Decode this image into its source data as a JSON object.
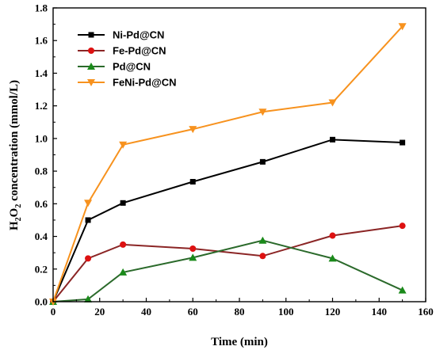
{
  "chart_data": {
    "type": "line",
    "xlabel": "Time (min)",
    "ylabel_main": "H",
    "ylabel_sub1": "2",
    "ylabel_mid": "O",
    "ylabel_sub2": "2",
    "ylabel_rest": " concentration (mmol/L)",
    "xlim": [
      0,
      160
    ],
    "ylim": [
      0.0,
      1.8
    ],
    "x_ticks": [
      "0",
      "20",
      "40",
      "60",
      "80",
      "100",
      "120",
      "140",
      "160"
    ],
    "y_ticks": [
      "0.0",
      "0.2",
      "0.4",
      "0.6",
      "0.8",
      "1.0",
      "1.2",
      "1.4",
      "1.6",
      "1.8"
    ],
    "grid": false,
    "legend_position": "top-left",
    "x": [
      0,
      15,
      30,
      60,
      90,
      120,
      150
    ],
    "series": [
      {
        "name": "Ni-Pd@CN",
        "color": "#000000",
        "marker": "square",
        "values": [
          0.0,
          0.5,
          0.605,
          0.735,
          0.857,
          0.993,
          0.975
        ]
      },
      {
        "name": "Fe-Pd@CN",
        "color": "#8b2525",
        "marker_color": "#dd1111",
        "marker": "circle",
        "values": [
          0.0,
          0.265,
          0.35,
          0.325,
          0.28,
          0.405,
          0.465
        ]
      },
      {
        "name": "Pd@CN",
        "color": "#2b6a2b",
        "marker_color": "#1a8a1a",
        "marker": "triangle-up",
        "values": [
          0.0,
          0.015,
          0.18,
          0.27,
          0.375,
          0.265,
          0.07
        ]
      },
      {
        "name": "FeNi-Pd@CN",
        "color": "#f7921e",
        "marker": "triangle-down",
        "values": [
          0.0,
          0.605,
          0.962,
          1.057,
          1.163,
          1.22,
          1.687
        ]
      }
    ]
  }
}
